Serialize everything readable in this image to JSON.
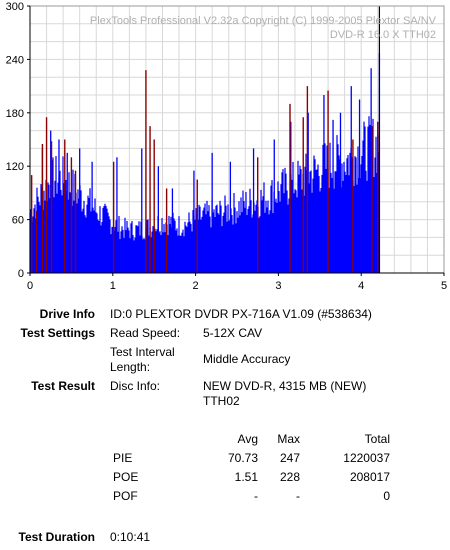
{
  "chart_data": {
    "type": "bar",
    "title": "",
    "overlay_text": [
      "PlexTools Professional V2.32a Copyright (C) 1999-2005 Plextor SA/NV",
      "DVD-R    16.0 X   TTH02"
    ],
    "xlabel": "",
    "ylabel": "",
    "xlim": [
      0,
      5
    ],
    "ylim": [
      0,
      300
    ],
    "x_ticks": [
      "0",
      "1",
      "2",
      "3",
      "4",
      "5"
    ],
    "y_ticks": [
      "0",
      "60",
      "120",
      "180",
      "240",
      "300"
    ],
    "grid": true,
    "marker_x": 4.22,
    "series": [
      {
        "key": "pie",
        "color": "#0000ff",
        "x": [
          0.0,
          0.1,
          0.2,
          0.3,
          0.4,
          0.5,
          0.6,
          0.7,
          0.8,
          0.9,
          1.0,
          1.1,
          1.2,
          1.3,
          1.4,
          1.5,
          1.6,
          1.7,
          1.8,
          1.9,
          2.0,
          2.1,
          2.2,
          2.3,
          2.4,
          2.5,
          2.6,
          2.7,
          2.8,
          2.9,
          3.0,
          3.1,
          3.2,
          3.3,
          3.4,
          3.5,
          3.6,
          3.7,
          3.8,
          3.9,
          4.0,
          4.1,
          4.2
        ],
        "values": [
          70,
          85,
          100,
          110,
          108,
          100,
          90,
          82,
          72,
          65,
          58,
          52,
          50,
          50,
          52,
          55,
          60,
          58,
          55,
          57,
          62,
          66,
          68,
          70,
          73,
          76,
          80,
          82,
          86,
          90,
          95,
          100,
          105,
          110,
          115,
          120,
          125,
          128,
          130,
          135,
          140,
          145,
          150
        ],
        "spikes": [
          [
            0.15,
            140
          ],
          [
            0.25,
            160
          ],
          [
            0.35,
            150
          ],
          [
            0.45,
            135
          ],
          [
            0.6,
            140
          ],
          [
            0.75,
            125
          ],
          [
            1.05,
            130
          ],
          [
            1.35,
            140
          ],
          [
            1.55,
            120
          ],
          [
            1.72,
            95
          ],
          [
            1.98,
            115
          ],
          [
            2.2,
            135
          ],
          [
            2.42,
            125
          ],
          [
            2.7,
            140
          ],
          [
            2.95,
            150
          ],
          [
            3.15,
            170
          ],
          [
            3.36,
            180
          ],
          [
            3.55,
            200
          ],
          [
            3.66,
            172
          ],
          [
            3.75,
            180
          ],
          [
            3.88,
            210
          ],
          [
            3.98,
            195
          ],
          [
            4.12,
            230
          ],
          [
            4.22,
            247
          ]
        ]
      },
      {
        "key": "poe",
        "color": "#8b0000",
        "values": [
          [
            0.02,
            110
          ],
          [
            0.08,
            70
          ],
          [
            0.15,
            145
          ],
          [
            0.2,
            175
          ],
          [
            0.26,
            148
          ],
          [
            0.42,
            150
          ],
          [
            0.5,
            130
          ],
          [
            0.55,
            115
          ],
          [
            1.01,
            125
          ],
          [
            1.4,
            228
          ],
          [
            1.45,
            165
          ],
          [
            1.5,
            150
          ],
          [
            1.65,
            95
          ],
          [
            2.02,
            105
          ],
          [
            2.75,
            130
          ],
          [
            3.14,
            190
          ],
          [
            3.3,
            175
          ],
          [
            3.35,
            210
          ],
          [
            3.6,
            205
          ],
          [
            3.9,
            150
          ],
          [
            4.13,
            165
          ],
          [
            4.2,
            170
          ]
        ]
      }
    ]
  },
  "drive_info": {
    "label": "Drive Info",
    "value": "ID:0 PLEXTOR DVDR PX-716A V1.09 (#538634)"
  },
  "test_settings": {
    "label": "Test Settings",
    "read_speed_label": "Read Speed:",
    "read_speed": "5-12X CAV",
    "interval_label_1": "Test Interval",
    "interval_label_2": "Length:",
    "interval": "Middle Accuracy"
  },
  "test_result": {
    "label": "Test Result",
    "disc_info_label": "Disc Info:",
    "disc_info_1": "NEW DVD-R, 4315 MB (NEW)",
    "disc_info_2": "TTH02"
  },
  "stats": {
    "headers": [
      "Avg",
      "Max",
      "Total"
    ],
    "rows": [
      {
        "name": "PIE",
        "avg": "70.73",
        "max": "247",
        "total": "1220037"
      },
      {
        "name": "POE",
        "avg": "1.51",
        "max": "228",
        "total": "208017"
      },
      {
        "name": "POF",
        "avg": "-",
        "max": "-",
        "total": "0"
      }
    ]
  },
  "test_duration": {
    "label": "Test Duration",
    "value": "0:10:41"
  }
}
